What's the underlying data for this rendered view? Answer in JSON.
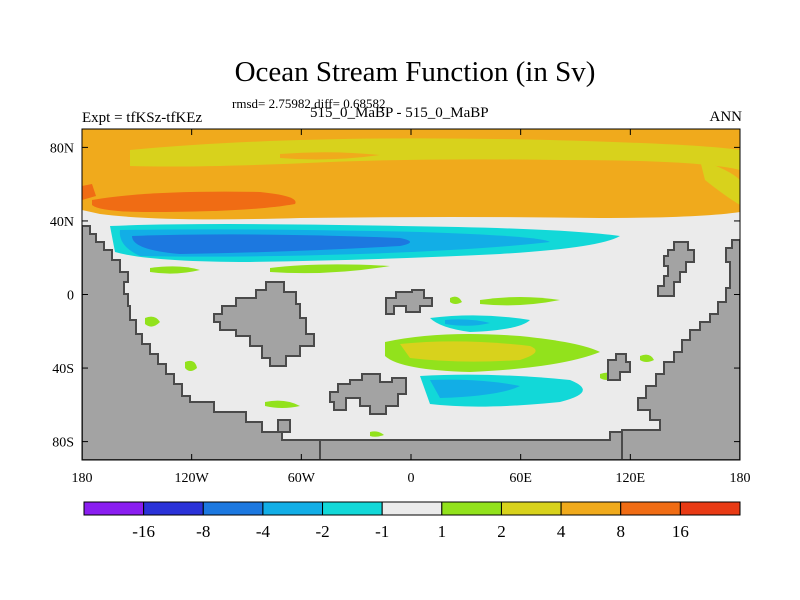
{
  "chart_data": {
    "type": "heatmap",
    "title": "Ocean Stream Function (in Sv)",
    "stats_text": "rmsd= 2.75982 diff= 0.68582",
    "left_label": "Expt = tfKSz-tfKEz",
    "center_label": "515_0_MaBP - 515_0_MaBP",
    "right_label": "ANN",
    "x_range": [
      -180,
      180
    ],
    "y_range": [
      -90,
      90
    ],
    "x_ticks": [
      {
        "value": -180,
        "label": "180"
      },
      {
        "value": -120,
        "label": "120W"
      },
      {
        "value": -60,
        "label": "60W"
      },
      {
        "value": 0,
        "label": "0"
      },
      {
        "value": 60,
        "label": "60E"
      },
      {
        "value": 120,
        "label": "120E"
      },
      {
        "value": 180,
        "label": "180"
      }
    ],
    "y_ticks": [
      {
        "value": 80,
        "label": "80N"
      },
      {
        "value": 40,
        "label": "40N"
      },
      {
        "value": 0,
        "label": "0"
      },
      {
        "value": -40,
        "label": "40S"
      },
      {
        "value": -80,
        "label": "80S"
      }
    ],
    "colorbar": {
      "levels": [
        "-16",
        "-8",
        "-4",
        "-2",
        "-1",
        "1",
        "2",
        "4",
        "8",
        "16"
      ],
      "colors": [
        "#8a1ef0",
        "#2a32d8",
        "#1c78e0",
        "#12aee6",
        "#12d8d8",
        "#ebebeb",
        "#92e21c",
        "#d8d21c",
        "#f0aa1c",
        "#f06c14",
        "#e83a14"
      ]
    },
    "colors": {
      "land": "#a3a3a3",
      "coast": "#4a4a4a",
      "ocean_background": "#ebebeb"
    },
    "regions": [
      {
        "name": "north-band-orange",
        "value": 6,
        "color": "#f0aa1c"
      },
      {
        "name": "north-band-red",
        "value": 10,
        "color": "#f06c14"
      },
      {
        "name": "north-band-yellow",
        "value": 3,
        "color": "#d8d21c"
      },
      {
        "name": "subpolar-gyre-outer",
        "value": -1.5,
        "color": "#12d8d8"
      },
      {
        "name": "subpolar-gyre-mid",
        "value": -3,
        "color": "#12aee6"
      },
      {
        "name": "subpolar-gyre-core",
        "value": -6,
        "color": "#1c78e0"
      },
      {
        "name": "southern-green",
        "value": 1.5,
        "color": "#92e21c"
      },
      {
        "name": "southern-yellow",
        "value": 3,
        "color": "#d8d21c"
      },
      {
        "name": "southern-cyan",
        "value": -1.5,
        "color": "#12d8d8"
      },
      {
        "name": "southern-blue",
        "value": -3,
        "color": "#12aee6"
      }
    ]
  }
}
